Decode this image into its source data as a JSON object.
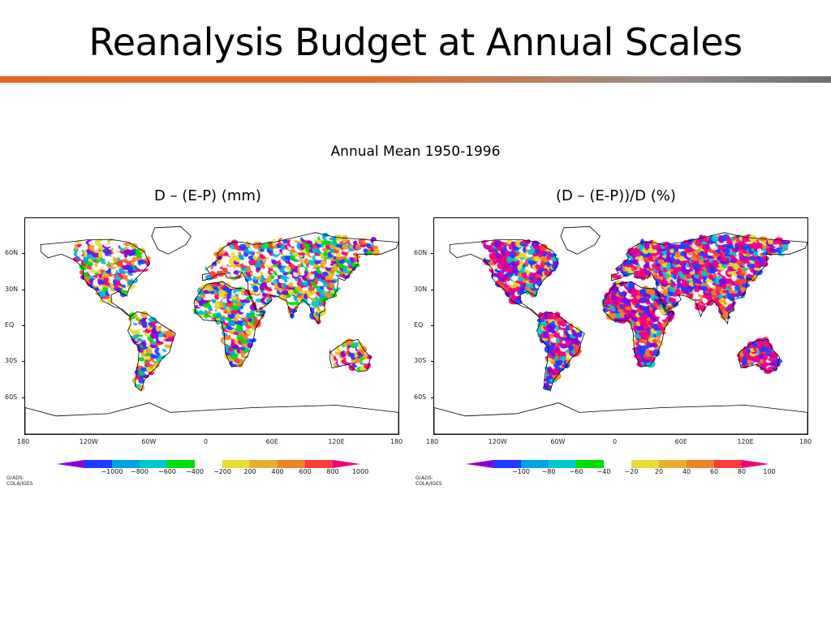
{
  "slide": {
    "title": "Reanalysis Budget at Annual Scales",
    "subtitle": "Annual Mean 1950-1996"
  },
  "panels": [
    {
      "title": "D – (E-P) (mm)",
      "legend_values": [
        "−1000",
        "−800",
        "−600",
        "−400",
        "−200",
        "200",
        "400",
        "600",
        "800",
        "1000"
      ],
      "credit": "GrADS: COLA/IGES",
      "dominant": "mixed"
    },
    {
      "title": "(D – (E-P))/D (%)",
      "legend_values": [
        "−100",
        "−80",
        "−60",
        "−40",
        "−20",
        "20",
        "40",
        "60",
        "80",
        "100"
      ],
      "credit": "GrADS: COLA/IGES",
      "dominant": "extreme"
    }
  ],
  "map_axes": {
    "lat_labels": [
      "60N",
      "30N",
      "EQ",
      "30S",
      "60S"
    ],
    "lon_labels": [
      "180",
      "120W",
      "60W",
      "0",
      "60E",
      "120E",
      "180"
    ]
  },
  "legend_colors": [
    "#8a00d4",
    "#1e3cff",
    "#00a0e6",
    "#00c8c8",
    "#00dc00",
    "#ffffff",
    "#e6dc32",
    "#e6af2d",
    "#f08228",
    "#fa3c3c",
    "#f00082"
  ]
}
